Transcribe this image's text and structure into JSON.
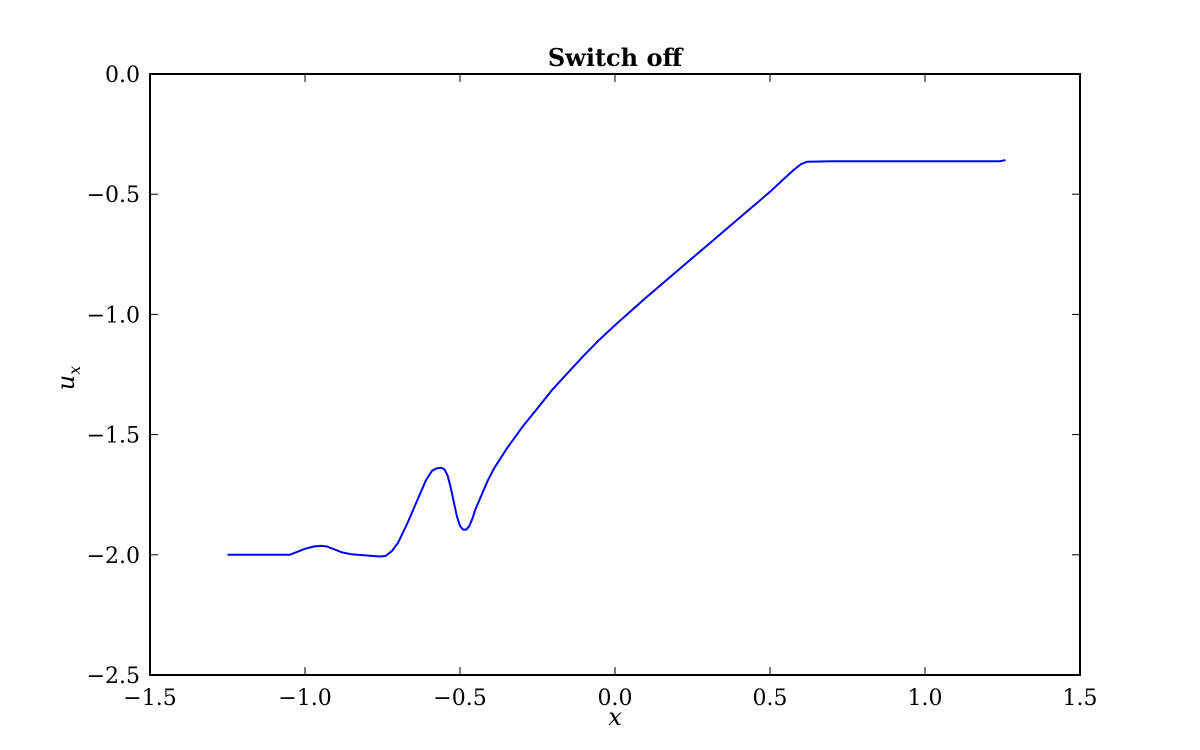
{
  "chart_data": {
    "type": "line",
    "title": "Switch off",
    "xlabel": "x",
    "ylabel": "u",
    "ylabel_subscript": "x",
    "xlim": [
      -1.5,
      1.5
    ],
    "ylim": [
      -2.5,
      0.0
    ],
    "xticks": [
      -1.5,
      -1.0,
      -0.5,
      0.0,
      0.5,
      1.0,
      1.5
    ],
    "yticks": [
      -2.5,
      -2.0,
      -1.5,
      -1.0,
      -0.5,
      0.0
    ],
    "xtick_labels": [
      "−1.5",
      "−1.0",
      "−0.5",
      "0.0",
      "0.5",
      "1.0",
      "1.5"
    ],
    "ytick_labels": [
      "−2.5",
      "−2.0",
      "−1.5",
      "−1.0",
      "−0.5",
      "0.0"
    ],
    "grid": false,
    "line_color": "#0000ff",
    "series": [
      {
        "x": [
          -1.25,
          -1.15,
          -1.05,
          -1.03,
          -1.0,
          -0.97,
          -0.95,
          -0.93,
          -0.91,
          -0.88,
          -0.85,
          -0.8,
          -0.76,
          -0.74,
          -0.72,
          -0.7,
          -0.67,
          -0.64,
          -0.61,
          -0.59,
          -0.575,
          -0.56,
          -0.55,
          -0.54,
          -0.53,
          -0.52,
          -0.51,
          -0.5,
          -0.49,
          -0.48,
          -0.47,
          -0.46,
          -0.45,
          -0.43,
          -0.41,
          -0.39,
          -0.35,
          -0.3,
          -0.25,
          -0.2,
          -0.15,
          -0.1,
          -0.05,
          0.0,
          0.1,
          0.2,
          0.3,
          0.4,
          0.5,
          0.55,
          0.58,
          0.6,
          0.62,
          0.7,
          0.9,
          1.1,
          1.2,
          1.24,
          1.26
        ],
        "y": [
          -2.0,
          -2.0,
          -2.0,
          -1.99,
          -1.975,
          -1.965,
          -1.963,
          -1.965,
          -1.975,
          -1.99,
          -1.998,
          -2.003,
          -2.007,
          -2.005,
          -1.985,
          -1.95,
          -1.87,
          -1.78,
          -1.69,
          -1.65,
          -1.64,
          -1.638,
          -1.645,
          -1.67,
          -1.72,
          -1.78,
          -1.84,
          -1.88,
          -1.895,
          -1.895,
          -1.88,
          -1.85,
          -1.81,
          -1.75,
          -1.69,
          -1.64,
          -1.56,
          -1.47,
          -1.39,
          -1.31,
          -1.24,
          -1.17,
          -1.105,
          -1.045,
          -0.93,
          -0.82,
          -0.71,
          -0.6,
          -0.49,
          -0.43,
          -0.395,
          -0.375,
          -0.365,
          -0.363,
          -0.363,
          -0.363,
          -0.363,
          -0.363,
          -0.358
        ]
      }
    ]
  }
}
